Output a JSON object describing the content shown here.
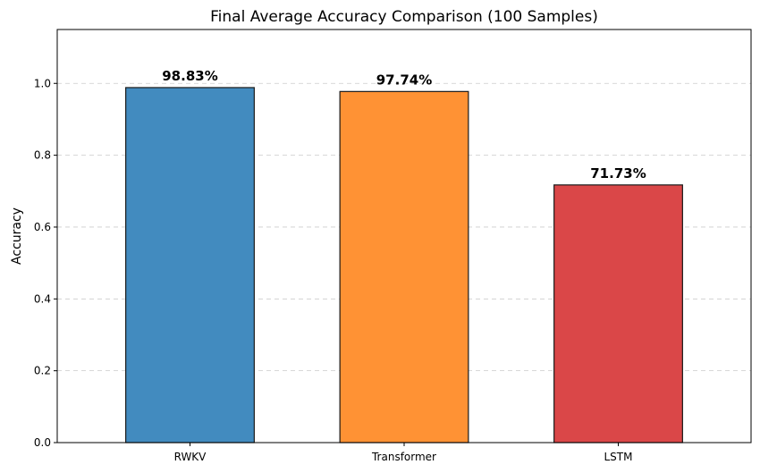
{
  "chart_data": {
    "type": "bar",
    "title": "Final Average Accuracy Comparison (100 Samples)",
    "xlabel": "",
    "ylabel": "Accuracy",
    "categories": [
      "RWKV",
      "Transformer",
      "LSTM"
    ],
    "values": [
      0.9883,
      0.9774,
      0.7173
    ],
    "data_labels": [
      "98.83%",
      "97.74%",
      "71.73%"
    ],
    "colors": [
      "#428BBF",
      "#FF9234",
      "#DA4748"
    ],
    "ylim": [
      0,
      1.15
    ],
    "yticks": [
      0.0,
      0.2,
      0.4,
      0.6,
      0.8,
      1.0
    ],
    "ytick_labels": [
      "0.0",
      "0.2",
      "0.4",
      "0.6",
      "0.8",
      "1.0"
    ],
    "grid": "y-dashed",
    "legend": "none"
  }
}
